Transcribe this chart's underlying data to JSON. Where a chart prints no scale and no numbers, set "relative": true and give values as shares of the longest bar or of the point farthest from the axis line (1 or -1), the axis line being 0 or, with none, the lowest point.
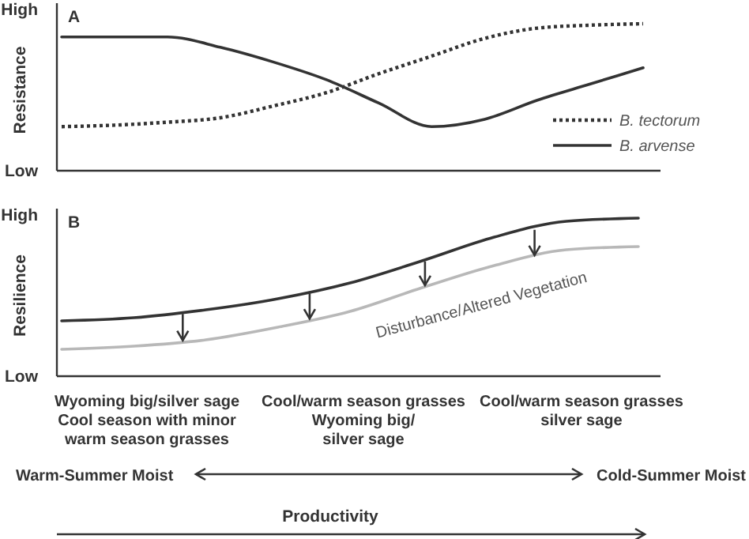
{
  "chart_data": [
    {
      "type": "line",
      "title": "A",
      "ylabel": "Resistance",
      "relative": true,
      "legend": "bottom right",
      "categories": [
        null,
        null,
        null,
        null,
        null,
        null,
        null,
        null,
        null,
        null,
        null,
        null
      ],
      "series": [
        {
          "name": "B. tectorum",
          "color": "#333333",
          "line_style": "dotted",
          "values": [
            0.3,
            0.31,
            0.33,
            0.36,
            0.44,
            0.53,
            0.66,
            0.78,
            0.9,
            0.97,
            0.99,
            1
          ]
        },
        {
          "name": "B. arvense",
          "color": "#333333",
          "line_style": "solid",
          "values": [
            0.91,
            0.91,
            0.91,
            0.84,
            0.74,
            0.62,
            0.46,
            0.3,
            0.35,
            0.48,
            0.59,
            0.7
          ]
        }
      ],
      "annotations": [
        "High",
        "Low"
      ]
    },
    {
      "type": "line",
      "title": "B",
      "ylabel": "Resilience",
      "xlabel": "Productivity",
      "relative": true,
      "categories": [
        null,
        null,
        null,
        null,
        null,
        null,
        null,
        null,
        null
      ],
      "series": [
        {
          "color": "#333333",
          "values": [
            0.35,
            0.37,
            0.42,
            0.49,
            0.59,
            0.73,
            0.88,
            0.98,
            1
          ]
        },
        {
          "color": "#b8b8b8",
          "values": [
            0.17,
            0.19,
            0.23,
            0.31,
            0.41,
            0.56,
            0.7,
            0.8,
            0.82
          ]
        }
      ],
      "annotations": [
        "High",
        "Low",
        "Wyoming big/silver sage\nCool season with minor\nwarm season grasses",
        "Cool/warm season grasses\nWyoming big/\nsilver sage",
        "Cool/warm season grasses\nsilver sage",
        "Warm-Summer Moist",
        "Cold-Summer Moist",
        "Disturbance/Altered Vegetation"
      ]
    }
  ]
}
